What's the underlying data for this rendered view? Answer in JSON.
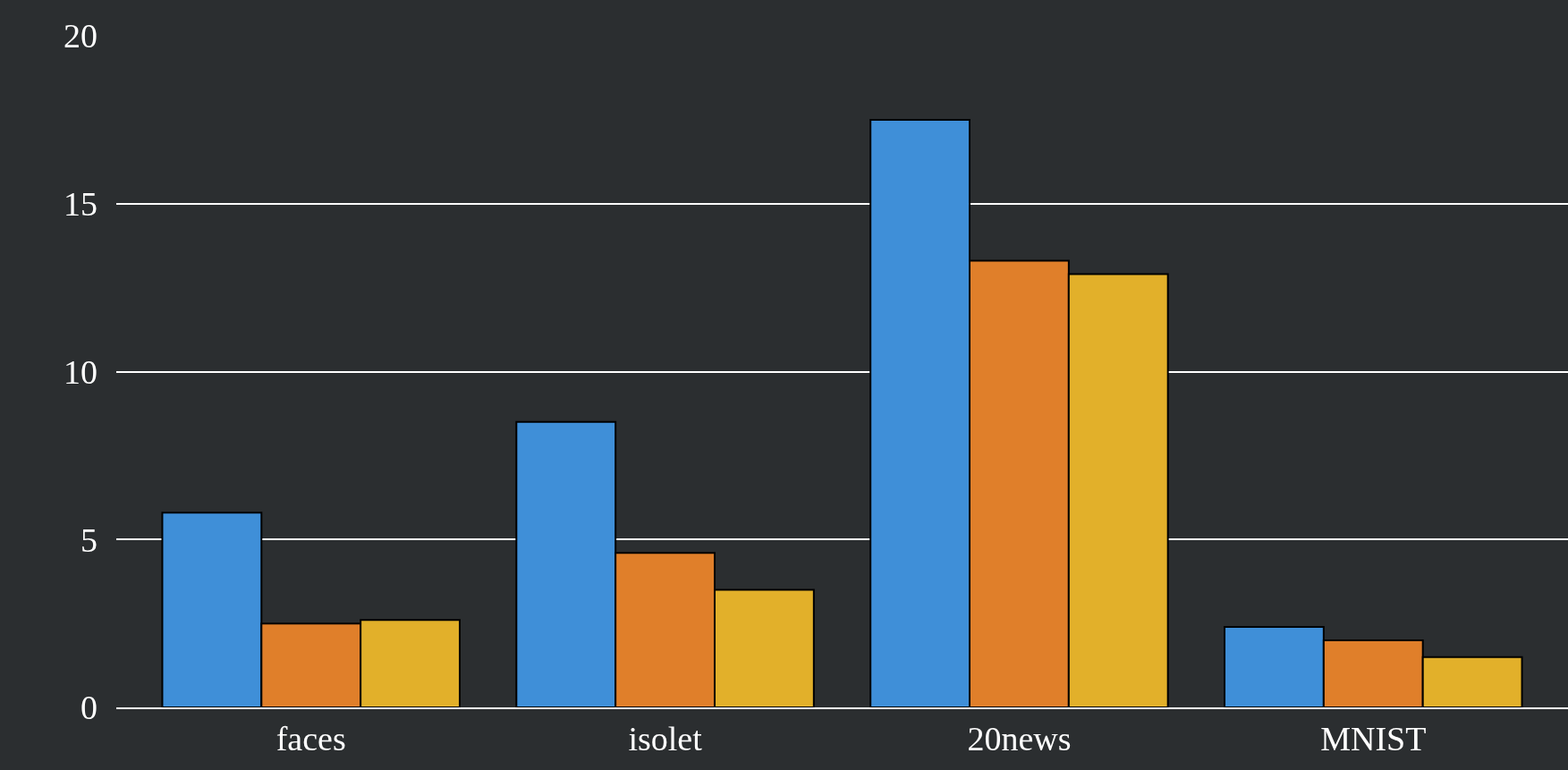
{
  "chart_data": {
    "type": "bar",
    "categories": [
      "faces",
      "isolet",
      "20news",
      "MNIST"
    ],
    "series": [
      {
        "color": "#3f8fd8",
        "values": [
          5.8,
          8.5,
          17.5,
          2.4
        ]
      },
      {
        "color": "#e07f2a",
        "values": [
          2.5,
          4.6,
          13.3,
          2.0
        ]
      },
      {
        "color": "#e2b02a",
        "values": [
          2.6,
          3.5,
          12.9,
          1.5
        ]
      }
    ],
    "ylim": [
      0,
      20
    ],
    "yticks": [
      0,
      5,
      10,
      15,
      20
    ],
    "grid": "y"
  }
}
